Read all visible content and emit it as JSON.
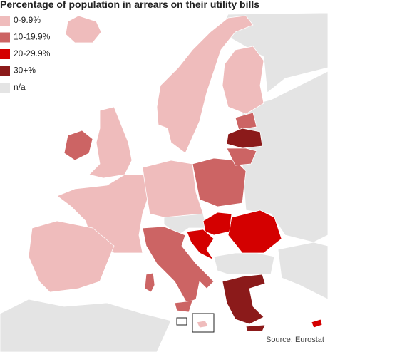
{
  "title": "Percentage of population in arrears on their utility bills",
  "legend": {
    "items": [
      {
        "label": "0-9.9%",
        "color": "#efbcbc"
      },
      {
        "label": "10-19.9%",
        "color": "#cc6464"
      },
      {
        "label": "20-29.9%",
        "color": "#d40000"
      },
      {
        "label": "30+%",
        "color": "#8b1a1a"
      },
      {
        "label": "n/a",
        "color": "#e4e4e4"
      }
    ]
  },
  "source": "Source: Eurostat"
}
